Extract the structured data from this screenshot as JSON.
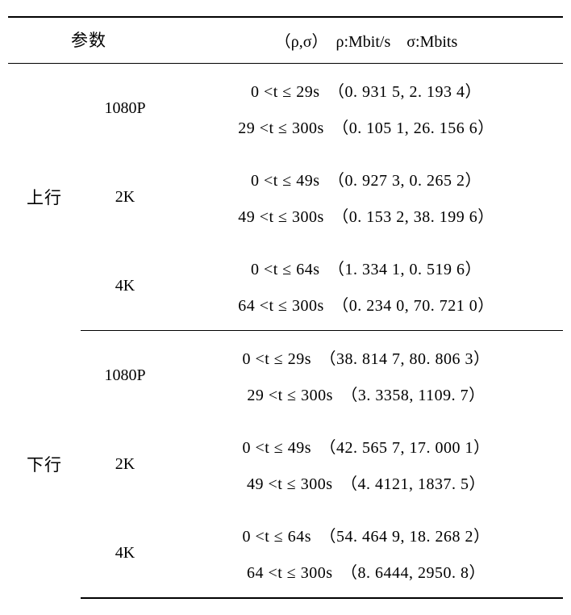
{
  "header": {
    "param_label": "参数",
    "value_label": "（ρ,σ）　ρ:Mbit/s　σ:Mbits"
  },
  "directions": [
    {
      "name": "上行",
      "groups": [
        {
          "res": "1080P",
          "lines": [
            "0 <t ≤ 29s　（0. 931 5, 2. 193 4）",
            "29 <t ≤ 300s　（0. 105 1, 26. 156 6）"
          ]
        },
        {
          "res": "2K",
          "lines": [
            "0 <t ≤ 49s　（0. 927 3, 0. 265 2）",
            "49 <t ≤ 300s　（0. 153 2, 38. 199 6）"
          ]
        },
        {
          "res": "4K",
          "lines": [
            "0 <t ≤ 64s　（1. 334 1, 0. 519 6）",
            "64 <t ≤ 300s　（0. 234 0, 70. 721 0）"
          ]
        }
      ]
    },
    {
      "name": "下行",
      "groups": [
        {
          "res": "1080P",
          "lines": [
            "0 <t ≤ 29s　（38. 814 7, 80. 806 3）",
            "29 <t ≤ 300s　（3. 3358, 1109. 7）"
          ]
        },
        {
          "res": "2K",
          "lines": [
            "0 <t ≤ 49s　（42. 565 7, 17. 000 1）",
            "49 <t ≤ 300s　（4. 4121, 1837. 5）"
          ]
        },
        {
          "res": "4K",
          "lines": [
            "0 <t ≤ 64s　（54. 464 9, 18. 268 2）",
            "64 <t ≤ 300s　（8. 6444, 2950. 8）"
          ]
        }
      ]
    }
  ]
}
